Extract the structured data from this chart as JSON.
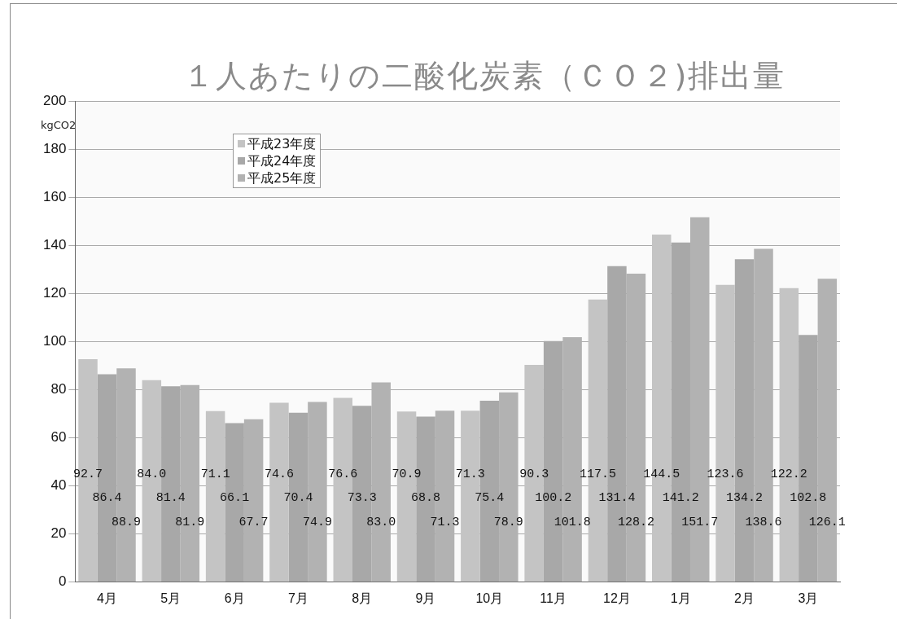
{
  "chart_data": {
    "type": "bar",
    "title": "１人あたりの二酸化炭素（ＣＯ２)排出量",
    "ylabel": "kgCO2",
    "categories": [
      "4月",
      "5月",
      "6月",
      "7月",
      "8月",
      "9月",
      "10月",
      "11月",
      "12月",
      "1月",
      "2月",
      "3月"
    ],
    "series": [
      {
        "name": "平成23年度",
        "color": "#c4c4c4",
        "values": [
          92.7,
          84,
          71.1,
          74.6,
          76.6,
          70.9,
          71.3,
          90.3,
          117.5,
          144.5,
          123.6,
          122.2
        ],
        "value_labels": [
          "92.7",
          "84.0",
          "71.1",
          "74.6",
          "76.6",
          "70.9",
          "71.3",
          "90.3",
          "117.5",
          "144.5",
          "123.6",
          "122.2"
        ]
      },
      {
        "name": "平成24年度",
        "color": "#a8a8a8",
        "values": [
          86.4,
          81.4,
          66.1,
          70.4,
          73.3,
          68.8,
          75.4,
          100.2,
          131.4,
          141.2,
          134.2,
          102.8
        ],
        "value_labels": [
          "86.4",
          "81.4",
          "66.1",
          "70.4",
          "73.3",
          "68.8",
          "75.4",
          "100.2",
          "131.4",
          "141.2",
          "134.2",
          "102.8"
        ]
      },
      {
        "name": "平成25年度",
        "color": "#b2b2b2",
        "values": [
          88.9,
          81.9,
          67.7,
          74.9,
          83,
          71.3,
          78.9,
          101.8,
          128.2,
          151.7,
          138.6,
          126.1
        ],
        "value_labels": [
          "88.9",
          "81.9",
          "67.7",
          "74.9",
          "83.0",
          "71.3",
          "78.9",
          "101.8",
          "128.2",
          "151.7",
          "138.6",
          "126.1"
        ]
      }
    ],
    "ylim": [
      0,
      200
    ],
    "yticks": [
      0,
      20,
      40,
      60,
      80,
      100,
      120,
      140,
      160,
      180,
      200
    ],
    "grid": "y",
    "legend": "top left"
  }
}
